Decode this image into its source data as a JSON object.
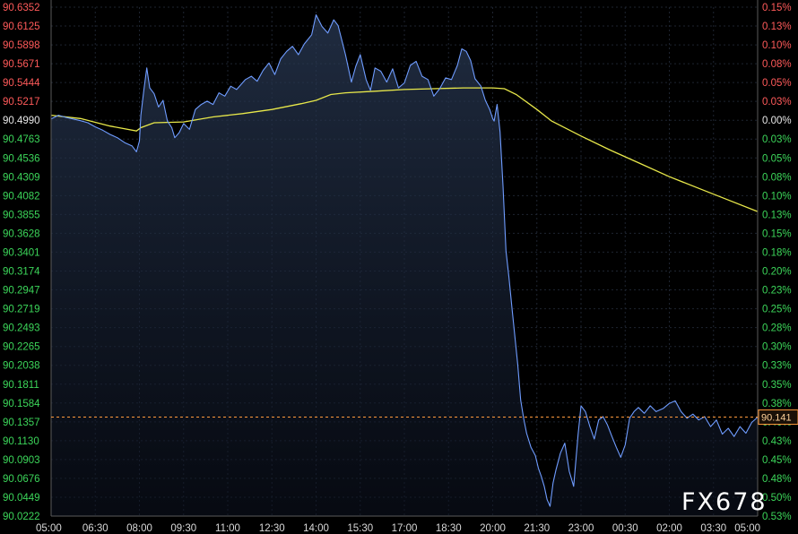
{
  "chart_data": {
    "type": "line",
    "y_ticks": [
      "90.6352",
      "90.6125",
      "90.5898",
      "90.5671",
      "90.5444",
      "90.5217",
      "90.4990",
      "90.4763",
      "90.4536",
      "90.4309",
      "90.4082",
      "90.3855",
      "90.3628",
      "90.3401",
      "90.3174",
      "90.2947",
      "90.2719",
      "90.2493",
      "90.2265",
      "90.2038",
      "90.1811",
      "90.1584",
      "90.1357",
      "90.1130",
      "90.0903",
      "90.0676",
      "90.0449",
      "90.0222"
    ],
    "pct_ticks": [
      "0.15%",
      "0.13%",
      "0.10%",
      "0.08%",
      "0.05%",
      "0.03%",
      "0.00%",
      "0.03%",
      "0.05%",
      "0.08%",
      "0.10%",
      "0.13%",
      "0.15%",
      "0.18%",
      "0.20%",
      "0.23%",
      "0.25%",
      "0.28%",
      "0.30%",
      "0.33%",
      "0.35%",
      "0.38%",
      "0.40%",
      "0.43%",
      "0.45%",
      "0.48%",
      "0.50%",
      "0.53%"
    ],
    "x_ticks": [
      "05:00",
      "06:30",
      "08:00",
      "09:30",
      "11:00",
      "12:30",
      "14:00",
      "15:30",
      "17:00",
      "18:30",
      "20:00",
      "21:30",
      "23:00",
      "00:30",
      "02:00",
      "03:30",
      "05:00"
    ],
    "ylim": [
      90.0222,
      90.6352
    ],
    "x_range_hours": [
      0,
      24
    ],
    "baseline": 90.499,
    "current_value": 90.1414,
    "current_label": "90.141",
    "colors": {
      "price": "#6f9cff",
      "average": "#e8e84a",
      "up": "#ff5a5a",
      "down": "#3cd65a",
      "current": "#ff9a3c"
    },
    "series": [
      {
        "points": [
          [
            0,
            90.5005
          ],
          [
            0.25,
            90.505
          ],
          [
            0.5,
            90.5025
          ],
          [
            0.75,
            90.5005
          ],
          [
            1,
            90.4985
          ],
          [
            1.25,
            90.496
          ],
          [
            1.5,
            90.491
          ],
          [
            1.75,
            90.487
          ],
          [
            2,
            90.482
          ],
          [
            2.25,
            90.478
          ],
          [
            2.5,
            90.472
          ],
          [
            2.75,
            90.468
          ],
          [
            2.9,
            90.461
          ],
          [
            3.0,
            90.474
          ],
          [
            3.05,
            90.505
          ],
          [
            3.15,
            90.535
          ],
          [
            3.25,
            90.562
          ],
          [
            3.35,
            90.538
          ],
          [
            3.5,
            90.531
          ],
          [
            3.65,
            90.515
          ],
          [
            3.8,
            90.523
          ],
          [
            3.95,
            90.498
          ],
          [
            4.1,
            90.49
          ],
          [
            4.2,
            90.478
          ],
          [
            4.35,
            90.484
          ],
          [
            4.5,
            90.495
          ],
          [
            4.7,
            90.488
          ],
          [
            4.9,
            90.512
          ],
          [
            5.1,
            90.518
          ],
          [
            5.3,
            90.522
          ],
          [
            5.5,
            90.518
          ],
          [
            5.7,
            90.532
          ],
          [
            5.9,
            90.528
          ],
          [
            6.1,
            90.54
          ],
          [
            6.3,
            90.536
          ],
          [
            6.6,
            90.548
          ],
          [
            6.8,
            90.552
          ],
          [
            7.0,
            90.546
          ],
          [
            7.2,
            90.559
          ],
          [
            7.4,
            90.568
          ],
          [
            7.6,
            90.554
          ],
          [
            7.8,
            90.573
          ],
          [
            8.0,
            90.582
          ],
          [
            8.2,
            90.588
          ],
          [
            8.4,
            90.578
          ],
          [
            8.6,
            90.591
          ],
          [
            8.85,
            90.602
          ],
          [
            9.0,
            90.626
          ],
          [
            9.2,
            90.612
          ],
          [
            9.4,
            90.604
          ],
          [
            9.6,
            90.62
          ],
          [
            9.75,
            90.613
          ],
          [
            10.0,
            90.578
          ],
          [
            10.2,
            90.545
          ],
          [
            10.35,
            90.564
          ],
          [
            10.5,
            90.578
          ],
          [
            10.7,
            90.548
          ],
          [
            10.85,
            90.535
          ],
          [
            11.0,
            90.562
          ],
          [
            11.2,
            90.558
          ],
          [
            11.4,
            90.545
          ],
          [
            11.6,
            90.561
          ],
          [
            11.8,
            90.538
          ],
          [
            12.0,
            90.544
          ],
          [
            12.2,
            90.565
          ],
          [
            12.4,
            90.57
          ],
          [
            12.6,
            90.552
          ],
          [
            12.8,
            90.548
          ],
          [
            13.0,
            90.528
          ],
          [
            13.2,
            90.537
          ],
          [
            13.4,
            90.55
          ],
          [
            13.6,
            90.548
          ],
          [
            13.8,
            90.565
          ],
          [
            13.95,
            90.585
          ],
          [
            14.1,
            90.582
          ],
          [
            14.25,
            90.571
          ],
          [
            14.4,
            90.549
          ],
          [
            14.6,
            90.54
          ],
          [
            14.75,
            90.523
          ],
          [
            14.9,
            90.512
          ],
          [
            15.0,
            90.501
          ],
          [
            15.05,
            90.498
          ],
          [
            15.15,
            90.518
          ],
          [
            15.25,
            90.485
          ],
          [
            15.35,
            90.42
          ],
          [
            15.45,
            90.342
          ],
          [
            15.55,
            90.31
          ],
          [
            15.65,
            90.275
          ],
          [
            15.75,
            90.24
          ],
          [
            15.85,
            90.205
          ],
          [
            15.95,
            90.162
          ],
          [
            16.05,
            90.14
          ],
          [
            16.15,
            90.122
          ],
          [
            16.3,
            90.105
          ],
          [
            16.45,
            90.095
          ],
          [
            16.55,
            90.08
          ],
          [
            16.65,
            90.07
          ],
          [
            16.75,
            90.058
          ],
          [
            16.85,
            90.042
          ],
          [
            16.95,
            90.034
          ],
          [
            17.05,
            90.062
          ],
          [
            17.15,
            90.078
          ],
          [
            17.3,
            90.098
          ],
          [
            17.45,
            90.11
          ],
          [
            17.6,
            90.076
          ],
          [
            17.75,
            90.058
          ],
          [
            17.9,
            90.12
          ],
          [
            18.0,
            90.155
          ],
          [
            18.15,
            90.148
          ],
          [
            18.3,
            90.13
          ],
          [
            18.45,
            90.115
          ],
          [
            18.6,
            90.138
          ],
          [
            18.75,
            90.142
          ],
          [
            18.9,
            90.132
          ],
          [
            19.05,
            90.118
          ],
          [
            19.2,
            90.105
          ],
          [
            19.35,
            90.093
          ],
          [
            19.5,
            90.108
          ],
          [
            19.65,
            90.14
          ],
          [
            19.8,
            90.148
          ],
          [
            19.95,
            90.153
          ],
          [
            20.15,
            90.146
          ],
          [
            20.35,
            90.155
          ],
          [
            20.55,
            90.148
          ],
          [
            20.8,
            90.152
          ],
          [
            21.0,
            90.158
          ],
          [
            21.2,
            90.161
          ],
          [
            21.4,
            90.148
          ],
          [
            21.6,
            90.14
          ],
          [
            21.8,
            90.145
          ],
          [
            22.0,
            90.138
          ],
          [
            22.2,
            90.142
          ],
          [
            22.4,
            90.13
          ],
          [
            22.6,
            90.138
          ],
          [
            22.8,
            90.121
          ],
          [
            23.0,
            90.128
          ],
          [
            23.2,
            90.118
          ],
          [
            23.4,
            90.13
          ],
          [
            23.6,
            90.122
          ],
          [
            23.8,
            90.135
          ],
          [
            24.0,
            90.1414
          ]
        ]
      },
      {
        "points": [
          [
            0,
            90.505
          ],
          [
            1,
            90.501
          ],
          [
            2,
            90.492
          ],
          [
            2.9,
            90.486
          ],
          [
            3.05,
            90.49
          ],
          [
            3.5,
            90.496
          ],
          [
            4.5,
            90.497
          ],
          [
            5.5,
            90.503
          ],
          [
            6.5,
            90.507
          ],
          [
            7.5,
            90.512
          ],
          [
            8.5,
            90.519
          ],
          [
            9.0,
            90.523
          ],
          [
            9.5,
            90.53
          ],
          [
            10.0,
            90.532
          ],
          [
            11.0,
            90.534
          ],
          [
            12.0,
            90.536
          ],
          [
            13.0,
            90.537
          ],
          [
            14.0,
            90.538
          ],
          [
            15.0,
            90.538
          ],
          [
            15.4,
            90.537
          ],
          [
            15.8,
            90.53
          ],
          [
            16.5,
            90.512
          ],
          [
            17.0,
            90.498
          ],
          [
            18.0,
            90.48
          ],
          [
            19.0,
            90.463
          ],
          [
            20.0,
            90.447
          ],
          [
            21.0,
            90.431
          ],
          [
            22.0,
            90.417
          ],
          [
            23.0,
            90.403
          ],
          [
            24.0,
            90.389
          ]
        ]
      }
    ]
  },
  "watermark": "FX678"
}
